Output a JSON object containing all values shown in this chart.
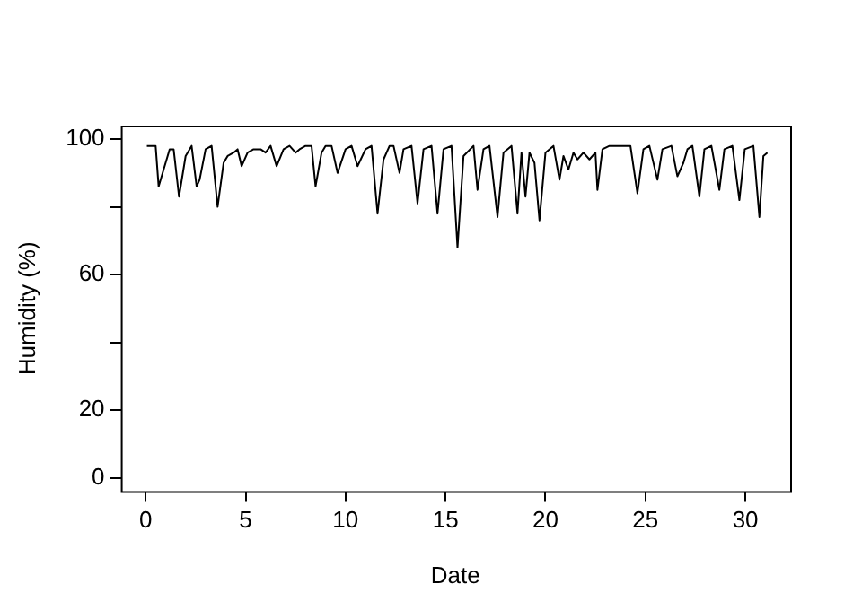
{
  "chart_data": {
    "type": "line",
    "xlabel": "Date",
    "ylabel": "Humidity (%)",
    "xlim": [
      -1.24,
      32.24
    ],
    "ylim": [
      -4,
      104
    ],
    "xticks": [
      0,
      5,
      10,
      15,
      20,
      25,
      30
    ],
    "yticks": [
      0,
      20,
      {
        "value": 40,
        "label": null
      },
      60,
      {
        "value": 80,
        "label": null
      },
      100
    ],
    "grid": false,
    "legend": false,
    "marker": "none",
    "line_style": "solid",
    "series": [
      {
        "color": "#000000",
        "x": [
          0.06,
          0.5,
          0.65,
          0.9,
          1.2,
          1.4,
          1.67,
          2,
          2.3,
          2.55,
          2.7,
          3,
          3.3,
          3.6,
          3.9,
          4.1,
          4.4,
          4.6,
          4.8,
          5.1,
          5.4,
          5.75,
          6,
          6.25,
          6.55,
          6.9,
          7.2,
          7.5,
          7.7,
          8,
          8.3,
          8.5,
          8.8,
          9,
          9.3,
          9.6,
          10,
          10.3,
          10.6,
          11,
          11.3,
          11.6,
          11.9,
          12.2,
          12.4,
          12.7,
          12.9,
          13.3,
          13.6,
          13.9,
          14.3,
          14.6,
          14.9,
          15.3,
          15.6,
          15.9,
          16.4,
          16.6,
          16.9,
          17.2,
          17.6,
          17.9,
          18.3,
          18.6,
          18.8,
          19,
          19.2,
          19.45,
          19.7,
          20,
          20.4,
          20.7,
          20.9,
          21.15,
          21.4,
          21.6,
          21.9,
          22.2,
          22.5,
          22.6,
          22.85,
          23.2,
          24.25,
          24.6,
          24.9,
          25.2,
          25.6,
          25.85,
          26.3,
          26.6,
          26.9,
          27.1,
          27.35,
          27.7,
          27.95,
          28.3,
          28.7,
          28.95,
          29.35,
          29.7,
          29.97,
          30.4,
          30.7,
          30.9,
          31.1
        ],
        "values": [
          98,
          98,
          86,
          91,
          97,
          97,
          83,
          95,
          98,
          86,
          88,
          97,
          98,
          80,
          93,
          95,
          96,
          97,
          92,
          96,
          97,
          97,
          96,
          98,
          92,
          97,
          98,
          96,
          97,
          98,
          98,
          86,
          96,
          98,
          98,
          90,
          97,
          98,
          92,
          97,
          98,
          78,
          94,
          98,
          98,
          90,
          97,
          98,
          81,
          97,
          98,
          78,
          97,
          98,
          68,
          95,
          98,
          85,
          97,
          98,
          77,
          96,
          98,
          78,
          96,
          83,
          96,
          93,
          76,
          96,
          98,
          88,
          95,
          91,
          96,
          94,
          96,
          94,
          96,
          85,
          97,
          98,
          98,
          84,
          97,
          98,
          88,
          97,
          98,
          89,
          93,
          97,
          98,
          83,
          97,
          98,
          85,
          97,
          98,
          82,
          97,
          98,
          77,
          95,
          96
        ]
      }
    ]
  }
}
